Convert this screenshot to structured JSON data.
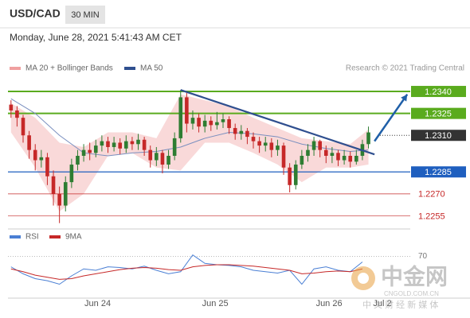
{
  "header": {
    "symbol": "USD/CAD",
    "timeframe": "30 MIN",
    "datetime": "Monday, June 28, 2021 5:41:43 AM CET",
    "credit": "Research © 2021 Trading Central"
  },
  "watermark": {
    "logo": "中金网",
    "site": "CNGOLD.COM.CN",
    "slogan": "中 文 财 经 新 媒 体"
  },
  "chart_data": [
    {
      "type": "candlestick",
      "up_color": "#2e7d32",
      "down_color": "#c62828",
      "xlim": [
        -0.5,
        65.9
      ],
      "ylim": [
        1.2246,
        1.2346
      ],
      "legend": [
        {
          "name": "MA 20 + Bollinger Bands",
          "color": "#f0a0a0"
        },
        {
          "name": "MA 50",
          "color": "#2f4f8f"
        }
      ],
      "open": [
        1.2331,
        1.2327,
        1.2322,
        1.231,
        1.23,
        1.2293,
        1.2295,
        1.2282,
        1.227,
        1.2262,
        1.2278,
        1.229,
        1.2296,
        1.23,
        1.2298,
        1.2303,
        1.2306,
        1.2302,
        1.2305,
        1.2301,
        1.2306,
        1.2304,
        1.2307,
        1.23,
        1.2293,
        1.2298,
        1.229,
        1.2296,
        1.2308,
        1.2336,
        1.2318,
        1.2322,
        1.2316,
        1.232,
        1.2317,
        1.2319,
        1.2321,
        1.2315,
        1.2311,
        1.2313,
        1.2309,
        1.2306,
        1.2303,
        1.2305,
        1.23,
        1.2303,
        1.2288,
        1.2276,
        1.229,
        1.2296,
        1.23,
        1.2306,
        1.23,
        1.2296,
        1.2298,
        1.2293,
        1.2296,
        1.2292,
        1.2296,
        1.2304
      ],
      "high": [
        1.2334,
        1.233,
        1.2324,
        1.2313,
        1.2304,
        1.23,
        1.2298,
        1.2286,
        1.2275,
        1.2282,
        1.2294,
        1.23,
        1.2304,
        1.2305,
        1.2307,
        1.231,
        1.2309,
        1.2309,
        1.2308,
        1.231,
        1.2309,
        1.2311,
        1.2309,
        1.2303,
        1.2302,
        1.23,
        1.23,
        1.2312,
        1.2341,
        1.2339,
        1.2327,
        1.2325,
        1.2324,
        1.2323,
        1.2326,
        1.2325,
        1.2323,
        1.2318,
        1.2317,
        1.2315,
        1.2312,
        1.2309,
        1.2309,
        1.2308,
        1.2307,
        1.2305,
        1.2291,
        1.2293,
        1.23,
        1.2304,
        1.2309,
        1.2307,
        1.2303,
        1.2302,
        1.23,
        1.23,
        1.2299,
        1.23,
        1.2307,
        1.2316
      ],
      "low": [
        1.2322,
        1.2316,
        1.2305,
        1.2294,
        1.2286,
        1.2288,
        1.2276,
        1.2262,
        1.225,
        1.2258,
        1.2274,
        1.2286,
        1.2292,
        1.2293,
        1.2295,
        1.2299,
        1.2298,
        1.2299,
        1.2297,
        1.2298,
        1.23,
        1.23,
        1.2296,
        1.2288,
        1.2289,
        1.2284,
        1.2287,
        1.2293,
        1.2305,
        1.2312,
        1.2314,
        1.2312,
        1.2312,
        1.2313,
        1.2314,
        1.2315,
        1.2311,
        1.2307,
        1.2307,
        1.2304,
        1.2301,
        1.2298,
        1.2299,
        1.2295,
        1.2296,
        1.2283,
        1.2271,
        1.2273,
        1.2287,
        1.2292,
        1.2296,
        1.2295,
        1.2291,
        1.2291,
        1.2289,
        1.229,
        1.2288,
        1.229,
        1.2293,
        1.2301
      ],
      "close": [
        1.2327,
        1.2322,
        1.231,
        1.23,
        1.2293,
        1.2295,
        1.2282,
        1.227,
        1.2262,
        1.2278,
        1.229,
        1.2296,
        1.23,
        1.2298,
        1.2303,
        1.2306,
        1.2302,
        1.2305,
        1.2301,
        1.2306,
        1.2304,
        1.2307,
        1.23,
        1.2293,
        1.2298,
        1.229,
        1.2296,
        1.2308,
        1.2336,
        1.2318,
        1.2322,
        1.2316,
        1.232,
        1.2317,
        1.2319,
        1.2321,
        1.2315,
        1.2311,
        1.2313,
        1.2309,
        1.2306,
        1.2303,
        1.2305,
        1.23,
        1.2303,
        1.2288,
        1.2276,
        1.229,
        1.2296,
        1.23,
        1.2306,
        1.23,
        1.2296,
        1.2298,
        1.2293,
        1.2296,
        1.2292,
        1.2296,
        1.2304,
        1.2312
      ],
      "bollinger": {
        "color": "#f8d0d0",
        "x": [
          0,
          4,
          8,
          12,
          16,
          20,
          24,
          28,
          32,
          36,
          40,
          44,
          48,
          52,
          56,
          59
        ],
        "upper": [
          1.2332,
          1.2322,
          1.2305,
          1.2302,
          1.2312,
          1.2312,
          1.2308,
          1.2338,
          1.2334,
          1.233,
          1.2322,
          1.2315,
          1.2308,
          1.2306,
          1.2304,
          1.2314
        ],
        "lower": [
          1.2312,
          1.2288,
          1.2258,
          1.227,
          1.2296,
          1.2298,
          1.2288,
          1.2286,
          1.2305,
          1.2305,
          1.2298,
          1.229,
          1.2278,
          1.2288,
          1.2288,
          1.229
        ]
      },
      "ma50": {
        "color": "#7a8fbf",
        "x": [
          0,
          4,
          8,
          12,
          16,
          20,
          24,
          28,
          32,
          36,
          40,
          44,
          48,
          52,
          56,
          59
        ],
        "values": [
          1.2335,
          1.2325,
          1.231,
          1.2298,
          1.2296,
          1.2298,
          1.2299,
          1.2302,
          1.2308,
          1.2312,
          1.2311,
          1.2309,
          1.2304,
          1.2301,
          1.2299,
          1.23
        ]
      },
      "levels": [
        {
          "value": 1.234,
          "label": "1.2340",
          "color": "#5aab1e",
          "style": "bold",
          "boxed": true
        },
        {
          "value": 1.2325,
          "label": "1.2325",
          "color": "#5aab1e",
          "style": "bold",
          "boxed": true
        },
        {
          "value": 1.231,
          "label": "1.2310",
          "color": "#333333",
          "style": "dotted",
          "boxed": true
        },
        {
          "value": 1.2285,
          "label": "1.2285",
          "color": "#1f5fbf",
          "style": "solid",
          "boxed": true
        },
        {
          "value": 1.227,
          "label": "1.2270",
          "color": "#c62828",
          "style": "thin",
          "boxed": false
        },
        {
          "value": 1.2255,
          "label": "1.2255",
          "color": "#c62828",
          "style": "thin",
          "boxed": false
        }
      ],
      "trendline": {
        "color": "#2f4f8f",
        "x": [
          28,
          60
        ],
        "y": [
          1.2341,
          1.2297
        ]
      },
      "arrow": {
        "color": "#1f5fa8",
        "x": [
          60,
          65.4
        ],
        "y": [
          1.2306,
          1.2338
        ]
      }
    },
    {
      "type": "line",
      "xlim": [
        -0.5,
        65.9
      ],
      "ylim": [
        10,
        90
      ],
      "yticks": [
        70
      ],
      "xticks": [
        {
          "value": 14.3,
          "label": "Jun 24"
        },
        {
          "value": 33.7,
          "label": "Jun 25"
        },
        {
          "value": 52.5,
          "label": "Jun 26"
        },
        {
          "value": 61.3,
          "label": "Jul 2"
        }
      ],
      "x": [
        0,
        2,
        4,
        6,
        8,
        10,
        12,
        14,
        16,
        18,
        20,
        22,
        24,
        26,
        28,
        30,
        32,
        34,
        36,
        38,
        40,
        42,
        44,
        46,
        48,
        50,
        52,
        54,
        56,
        58
      ],
      "series": [
        {
          "name": "RSI",
          "color": "#4a7fd4",
          "values": [
            55,
            45,
            38,
            35,
            30,
            42,
            52,
            50,
            55,
            54,
            52,
            56,
            50,
            45,
            48,
            72,
            60,
            58,
            57,
            55,
            50,
            48,
            46,
            50,
            30,
            52,
            55,
            50,
            48,
            62
          ]
        },
        {
          "name": "9MA",
          "color": "#c62828",
          "values": [
            52,
            48,
            43,
            40,
            37,
            38,
            42,
            45,
            48,
            51,
            53,
            54,
            53,
            51,
            50,
            55,
            57,
            58,
            58,
            57,
            56,
            54,
            52,
            50,
            45,
            46,
            48,
            49,
            48,
            52
          ]
        }
      ]
    }
  ]
}
